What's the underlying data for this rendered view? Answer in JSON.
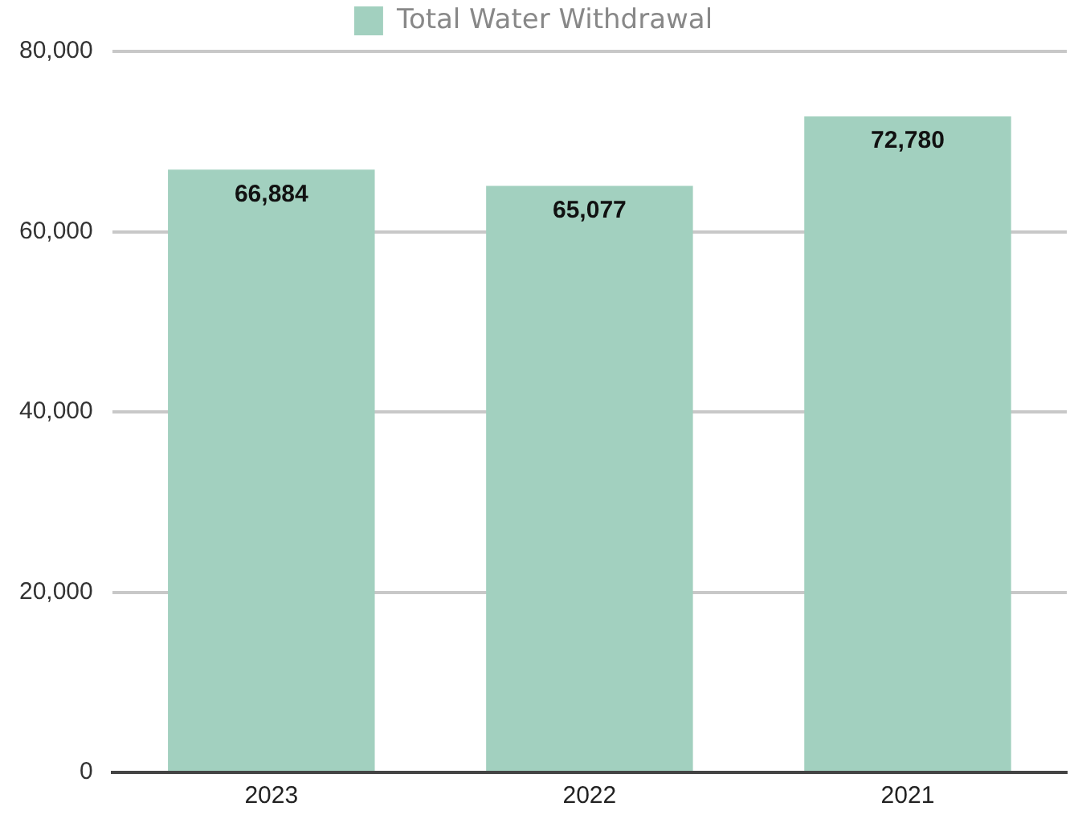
{
  "chart_data": {
    "type": "bar",
    "categories": [
      "2023",
      "2022",
      "2021"
    ],
    "series": [
      {
        "name": "Total Water Withdrawal",
        "color": "#a2d0bf",
        "values": [
          66884,
          65077,
          72780
        ],
        "value_labels": [
          "66,884",
          "65,077",
          "72,780"
        ]
      }
    ],
    "ylim": [
      0,
      80000
    ],
    "yticks": [
      {
        "value": 0,
        "label": "0"
      },
      {
        "value": 20000,
        "label": "20,000"
      },
      {
        "value": 40000,
        "label": "40,000"
      },
      {
        "value": 60000,
        "label": "60,000"
      },
      {
        "value": 80000,
        "label": "80,000"
      }
    ],
    "grid": "y",
    "legend": "top"
  }
}
